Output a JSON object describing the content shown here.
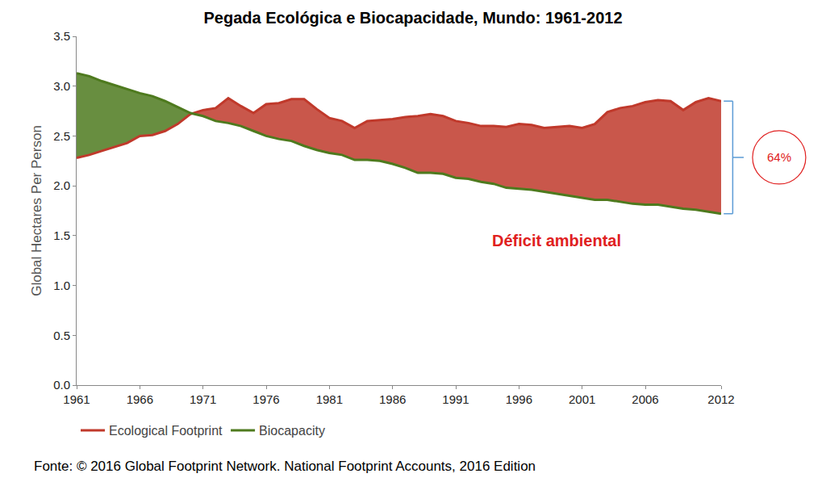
{
  "chart_data": {
    "type": "line",
    "title": "Pegada Ecológica e Biocapacidade, Mundo: 1961-2012",
    "y_label": "Global Hectares Per Person",
    "x": [
      1961,
      1962,
      1963,
      1964,
      1965,
      1966,
      1967,
      1968,
      1969,
      1970,
      1971,
      1972,
      1973,
      1974,
      1975,
      1976,
      1977,
      1978,
      1979,
      1980,
      1981,
      1982,
      1983,
      1984,
      1985,
      1986,
      1987,
      1988,
      1989,
      1990,
      1991,
      1992,
      1993,
      1994,
      1995,
      1996,
      1997,
      1998,
      1999,
      2000,
      2001,
      2002,
      2003,
      2004,
      2005,
      2006,
      2007,
      2008,
      2009,
      2010,
      2011,
      2012
    ],
    "series": [
      {
        "name": "Ecological Footprint",
        "color": "#c0392b",
        "values": [
          2.28,
          2.31,
          2.35,
          2.39,
          2.43,
          2.5,
          2.51,
          2.55,
          2.62,
          2.72,
          2.76,
          2.78,
          2.88,
          2.8,
          2.73,
          2.82,
          2.83,
          2.87,
          2.87,
          2.77,
          2.68,
          2.65,
          2.58,
          2.65,
          2.66,
          2.67,
          2.69,
          2.7,
          2.72,
          2.7,
          2.65,
          2.63,
          2.6,
          2.6,
          2.59,
          2.62,
          2.61,
          2.58,
          2.59,
          2.6,
          2.58,
          2.62,
          2.74,
          2.78,
          2.8,
          2.84,
          2.86,
          2.85,
          2.76,
          2.84,
          2.88,
          2.85
        ]
      },
      {
        "name": "Biocapacity",
        "color": "#4e7a1e",
        "values": [
          3.13,
          3.1,
          3.05,
          3.01,
          2.97,
          2.93,
          2.9,
          2.85,
          2.79,
          2.73,
          2.7,
          2.65,
          2.63,
          2.6,
          2.55,
          2.5,
          2.47,
          2.45,
          2.4,
          2.36,
          2.33,
          2.31,
          2.26,
          2.26,
          2.25,
          2.22,
          2.18,
          2.13,
          2.13,
          2.12,
          2.08,
          2.07,
          2.04,
          2.02,
          1.98,
          1.97,
          1.96,
          1.94,
          1.92,
          1.9,
          1.88,
          1.86,
          1.86,
          1.84,
          1.82,
          1.81,
          1.81,
          1.79,
          1.77,
          1.76,
          1.74,
          1.72
        ]
      }
    ],
    "xlim": [
      1961,
      2012
    ],
    "xticks": [
      1961,
      1966,
      1971,
      1976,
      1981,
      1986,
      1991,
      1996,
      2001,
      2006,
      2012
    ],
    "ylim": [
      0,
      3.5
    ],
    "yticks": [
      {
        "value": 0,
        "label": "0.0"
      },
      {
        "value": 0.5,
        "label": "0.5"
      },
      {
        "value": 1,
        "label": "1.0"
      },
      {
        "value": 1.5,
        "label": "1.5"
      },
      {
        "value": 2,
        "label": "2.0"
      },
      {
        "value": 2.5,
        "label": "2.5"
      },
      {
        "value": 3,
        "label": "3.0"
      },
      {
        "value": 3.5,
        "label": "3.5"
      }
    ],
    "grid": false,
    "legend": "bottom",
    "annotations": [
      "64%",
      "Déficit ambiental"
    ],
    "source": "Fonte: © 2016 Global Footprint Network. National Footprint Accounts, 2016 Edition"
  }
}
